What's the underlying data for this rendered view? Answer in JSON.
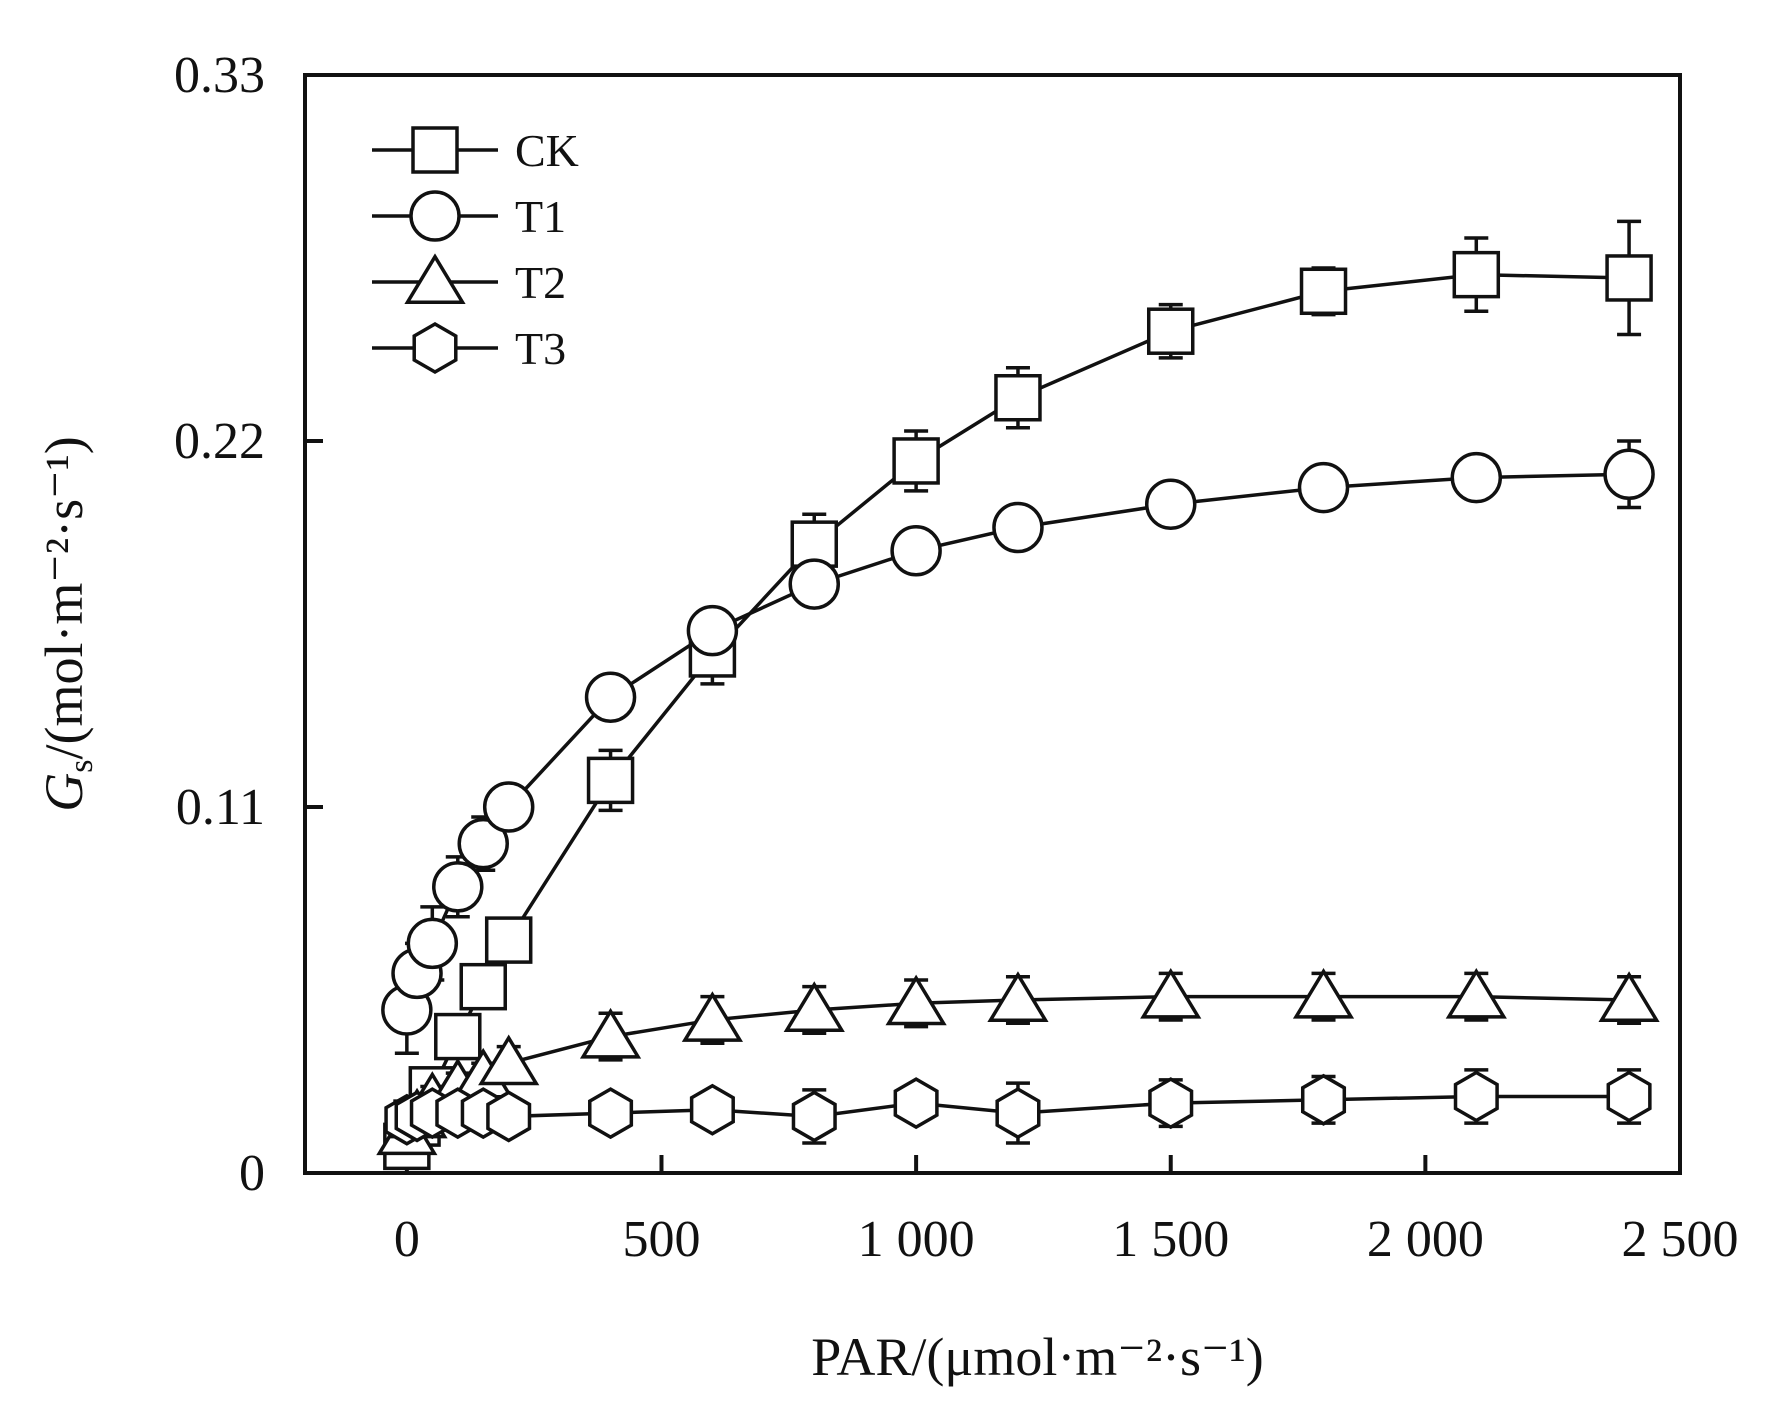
{
  "chart_data": {
    "type": "line",
    "xlabel": "PAR/(μmol·m⁻²·s⁻¹)",
    "ylabel": {
      "symbol": "G",
      "subscript": "s",
      "units": "/(mol·m⁻²·s⁻¹)"
    },
    "xlim": [
      -200,
      2500
    ],
    "ylim": [
      0,
      0.33
    ],
    "xticks": [
      0,
      500,
      1000,
      1500,
      2000,
      2500
    ],
    "xtick_labels": [
      "0",
      "500",
      "1 000",
      "1 500",
      "2 000",
      "2 500"
    ],
    "yticks": [
      0,
      0.11,
      0.22,
      0.33
    ],
    "ytick_labels": [
      "0",
      "0.11",
      "0.22",
      "0.33"
    ],
    "grid": false,
    "legend": "top-left",
    "series": [
      {
        "name": "CK",
        "marker": "square",
        "x": [
          0,
          20,
          50,
          100,
          150,
          200,
          400,
          600,
          800,
          1000,
          1200,
          1500,
          1800,
          2100,
          2400
        ],
        "y": [
          0.008,
          0.015,
          0.025,
          0.041,
          0.056,
          0.07,
          0.118,
          0.156,
          0.189,
          0.214,
          0.233,
          0.253,
          0.265,
          0.27,
          0.269
        ],
        "err": [
          0.004,
          0.004,
          0.004,
          0.005,
          0.005,
          0.006,
          0.009,
          0.009,
          0.009,
          0.009,
          0.009,
          0.008,
          0.007,
          0.011,
          0.017
        ]
      },
      {
        "name": "T1",
        "marker": "circle",
        "x": [
          0,
          20,
          50,
          100,
          150,
          200,
          400,
          600,
          800,
          1000,
          1200,
          1500,
          1800,
          2100,
          2400
        ],
        "y": [
          0.049,
          0.06,
          0.069,
          0.086,
          0.099,
          0.11,
          0.143,
          0.163,
          0.177,
          0.187,
          0.194,
          0.201,
          0.206,
          0.209,
          0.21
        ],
        "err": [
          0.013,
          0.009,
          0.011,
          0.009,
          0.008,
          0.006,
          0.002,
          0.005,
          0.004,
          0.005,
          0.004,
          0.002,
          0.002,
          0.005,
          0.01
        ]
      },
      {
        "name": "T2",
        "marker": "triangle",
        "x": [
          0,
          20,
          50,
          100,
          150,
          200,
          400,
          600,
          800,
          1000,
          1200,
          1500,
          1800,
          2100,
          2400
        ],
        "y": [
          0.012,
          0.017,
          0.022,
          0.026,
          0.029,
          0.033,
          0.041,
          0.046,
          0.049,
          0.051,
          0.052,
          0.053,
          0.053,
          0.053,
          0.052
        ],
        "err": [
          0.004,
          0.004,
          0.004,
          0.004,
          0.004,
          0.005,
          0.007,
          0.007,
          0.007,
          0.007,
          0.007,
          0.007,
          0.007,
          0.007,
          0.007
        ]
      },
      {
        "name": "T3",
        "marker": "hexagon",
        "x": [
          0,
          20,
          50,
          100,
          150,
          200,
          400,
          600,
          800,
          1000,
          1200,
          1500,
          1800,
          2100,
          2400
        ],
        "y": [
          0.016,
          0.017,
          0.018,
          0.018,
          0.018,
          0.017,
          0.018,
          0.019,
          0.017,
          0.021,
          0.018,
          0.021,
          0.022,
          0.023,
          0.023
        ],
        "err": [
          0.004,
          0.004,
          0.004,
          0.004,
          0.004,
          0.004,
          0.005,
          0.005,
          0.008,
          0.002,
          0.009,
          0.007,
          0.007,
          0.008,
          0.008
        ]
      }
    ]
  }
}
